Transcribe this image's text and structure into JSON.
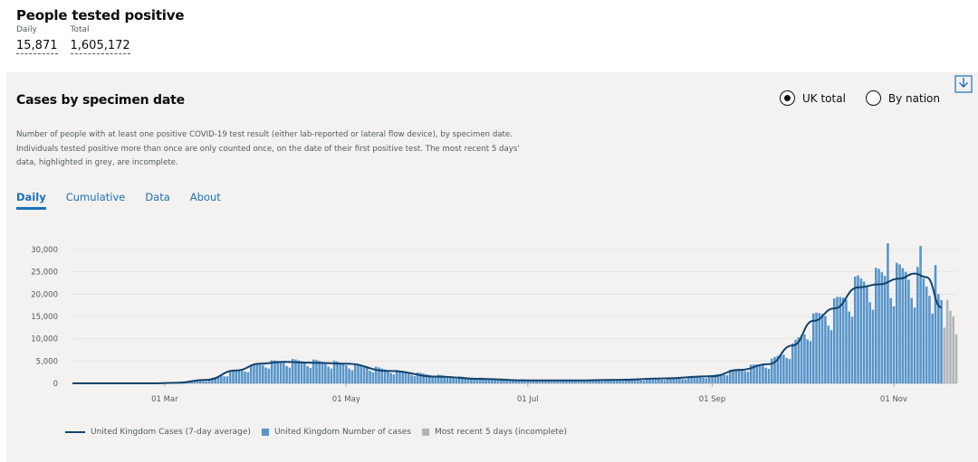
{
  "headline": {
    "title": "People tested positive",
    "daily_label": "Daily",
    "daily_value": "15,871",
    "total_label": "Total",
    "total_value": "1,605,172"
  },
  "card": {
    "title": "Cases by specimen date",
    "radio_uk": "UK total",
    "radio_nation": "By nation",
    "selected": "UK total",
    "download_icon": "download-icon",
    "description": "Number of people with at least one positive COVID-19 test result (either lab-reported or lateral flow device), by specimen date. Individuals tested positive more than once are only counted once, on the date of their first positive test. The most recent 5 days' data, highlighted in grey, are incomplete.",
    "tabs": [
      "Daily",
      "Cumulative",
      "Data",
      "About"
    ],
    "active_tab": "Daily"
  },
  "legend": {
    "avg": "United Kingdom Cases (7-day average)",
    "cases": "United Kingdom Number of cases",
    "recent": "Most recent 5 days (incomplete)"
  },
  "colors": {
    "bar": "#5694ca",
    "avg_line": "#12436d",
    "recent_bar": "#b1b4b6",
    "accent": "#1d70b8",
    "card_bg": "#f3f2f1"
  },
  "chart_data": {
    "type": "bar",
    "xlabel": "",
    "ylabel": "",
    "ylim": [
      0,
      30000
    ],
    "yticks": [
      0,
      5000,
      10000,
      15000,
      20000,
      25000,
      30000
    ],
    "ytick_labels": [
      "0",
      "5,000",
      "10,000",
      "15,000",
      "20,000",
      "25,000",
      "30,000"
    ],
    "xtick_labels": [
      "01 Mar",
      "01 May",
      "01 Jul",
      "01 Sep",
      "01 Nov"
    ],
    "xticks": [
      "2020-03-01",
      "2020-05-01",
      "2020-07-01",
      "2020-09-01",
      "2020-11-01"
    ],
    "date_range": [
      "2020-01-30",
      "2020-11-22"
    ],
    "grid": true,
    "legend_position": "bottom",
    "series": [
      {
        "name": "United Kingdom Number of cases",
        "anchors": [
          [
            "2020-01-30",
            0
          ],
          [
            "2020-02-20",
            20
          ],
          [
            "2020-03-05",
            100
          ],
          [
            "2020-03-15",
            700
          ],
          [
            "2020-03-25",
            2800
          ],
          [
            "2020-04-05",
            4600
          ],
          [
            "2020-04-12",
            4900
          ],
          [
            "2020-04-25",
            4700
          ],
          [
            "2020-05-05",
            3900
          ],
          [
            "2020-05-20",
            2500
          ],
          [
            "2020-06-05",
            1500
          ],
          [
            "2020-06-20",
            1000
          ],
          [
            "2020-07-05",
            700
          ],
          [
            "2020-07-20",
            700
          ],
          [
            "2020-08-05",
            800
          ],
          [
            "2020-08-20",
            1100
          ],
          [
            "2020-09-01",
            1700
          ],
          [
            "2020-09-10",
            3200
          ],
          [
            "2020-09-20",
            4500
          ],
          [
            "2020-09-28",
            8000
          ],
          [
            "2020-10-05",
            14000
          ],
          [
            "2020-10-12",
            17000
          ],
          [
            "2020-10-20",
            22000
          ],
          [
            "2020-10-28",
            23500
          ],
          [
            "2020-11-05",
            24500
          ],
          [
            "2020-11-10",
            23000
          ],
          [
            "2020-11-17",
            17000
          ]
        ],
        "peaks": [
          [
            "2020-10-30",
            31400
          ],
          [
            "2020-11-10",
            30800
          ],
          [
            "2020-11-15",
            26500
          ]
        ]
      },
      {
        "name": "Most recent 5 days (incomplete)",
        "values": [
          [
            "2020-11-18",
            12500
          ],
          [
            "2020-11-19",
            18700
          ],
          [
            "2020-11-20",
            16300
          ],
          [
            "2020-11-21",
            15000
          ],
          [
            "2020-11-22",
            11000
          ]
        ]
      },
      {
        "name": "United Kingdom Cases (7-day average)",
        "type": "line",
        "values": [
          [
            "2020-01-30",
            0
          ],
          [
            "2020-02-25",
            10
          ],
          [
            "2020-03-05",
            120
          ],
          [
            "2020-03-15",
            800
          ],
          [
            "2020-03-25",
            2900
          ],
          [
            "2020-04-02",
            4400
          ],
          [
            "2020-04-10",
            4800
          ],
          [
            "2020-04-20",
            4600
          ],
          [
            "2020-05-01",
            4400
          ],
          [
            "2020-05-15",
            2800
          ],
          [
            "2020-06-01",
            1500
          ],
          [
            "2020-06-15",
            1000
          ],
          [
            "2020-07-01",
            650
          ],
          [
            "2020-07-15",
            650
          ],
          [
            "2020-08-01",
            800
          ],
          [
            "2020-08-15",
            1100
          ],
          [
            "2020-09-01",
            1600
          ],
          [
            "2020-09-10",
            3000
          ],
          [
            "2020-09-20",
            4300
          ],
          [
            "2020-09-28",
            8500
          ],
          [
            "2020-10-05",
            14000
          ],
          [
            "2020-10-12",
            16800
          ],
          [
            "2020-10-20",
            21500
          ],
          [
            "2020-10-27",
            22200
          ],
          [
            "2020-11-03",
            23500
          ],
          [
            "2020-11-08",
            24600
          ],
          [
            "2020-11-12",
            23800
          ],
          [
            "2020-11-17",
            17000
          ]
        ]
      }
    ]
  }
}
